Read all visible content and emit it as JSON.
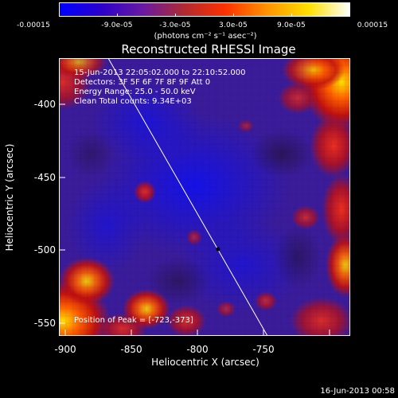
{
  "colorbar": {
    "ticks": [
      "-0.00015",
      "-9.0e-05",
      "-3.0e-05",
      "3.0e-05",
      "9.0e-05",
      "0.00015"
    ],
    "units": "(photons cm⁻² s⁻¹ asec⁻²)",
    "colors": [
      "#0000ff",
      "#2a00cc",
      "#6a1aa0",
      "#b02a30",
      "#ff3000",
      "#ff9000",
      "#ffe000",
      "#ffffff"
    ]
  },
  "title": "Reconstructed RHESSI Image",
  "annotations": {
    "time_range": "15-Jun-2013 22:05:02.000 to 22:10:52.000",
    "detectors": "Detectors: 3F 5F 6F 7F 8F 9F  Att 0",
    "energy": "Energy Range: 25.0 - 50.0 keV",
    "clean": "Clean    Total counts: 9.34E+03",
    "peak": "Position of Peak = [-723,-373]"
  },
  "xaxis": {
    "title": "Heliocentric X (arcsec)",
    "ticks": [
      "-900",
      "-850",
      "-800",
      "-750"
    ]
  },
  "yaxis": {
    "title": "Heliocentric Y (arcsec)",
    "ticks": [
      "-400",
      "-450",
      "-500",
      "-550"
    ]
  },
  "footer": {
    "timestamp": "16-Jun-2013 00:58"
  }
}
